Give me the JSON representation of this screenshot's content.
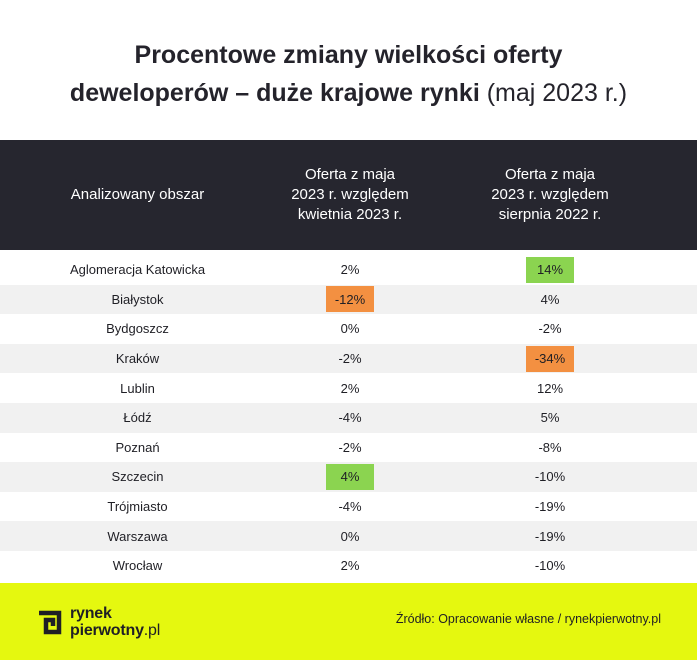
{
  "title": {
    "line1": "Procentowe zmiany wielkości oferty",
    "line2_bold": "deweloperów – duże krajowe rynki",
    "line2_light": " (maj 2023 r.)"
  },
  "colors": {
    "increase_highlight": "#8bd450",
    "decrease_highlight": "#f39041",
    "header_bg": "#26262f",
    "footer_bg": "#e5f80f"
  },
  "chart_data": {
    "type": "table",
    "columns": [
      "Analizowany obszar",
      "Oferta z maja 2023 r. względem kwietnia 2023 r.",
      "Oferta z maja 2023 r. względem sierpnia 2022 r."
    ],
    "column_lines": [
      [
        "Analizowany obszar"
      ],
      [
        "Oferta z maja",
        "2023 r. względem",
        "kwietnia 2023 r."
      ],
      [
        "Oferta z maja",
        "2023 r. względem",
        "sierpnia 2022 r."
      ]
    ],
    "rows": [
      {
        "area": "Aglomeracja Katowicka",
        "vs_apr_2023": "2%",
        "vs_aug_2022": "14%",
        "highlight_apr": null,
        "highlight_aug": "increase"
      },
      {
        "area": "Białystok",
        "vs_apr_2023": "-12%",
        "vs_aug_2022": "4%",
        "highlight_apr": "decrease",
        "highlight_aug": null
      },
      {
        "area": "Bydgoszcz",
        "vs_apr_2023": "0%",
        "vs_aug_2022": "-2%",
        "highlight_apr": null,
        "highlight_aug": null
      },
      {
        "area": "Kraków",
        "vs_apr_2023": "-2%",
        "vs_aug_2022": "-34%",
        "highlight_apr": null,
        "highlight_aug": "decrease"
      },
      {
        "area": "Lublin",
        "vs_apr_2023": "2%",
        "vs_aug_2022": "12%",
        "highlight_apr": null,
        "highlight_aug": null
      },
      {
        "area": "Łódź",
        "vs_apr_2023": "-4%",
        "vs_aug_2022": "5%",
        "highlight_apr": null,
        "highlight_aug": null
      },
      {
        "area": "Poznań",
        "vs_apr_2023": "-2%",
        "vs_aug_2022": "-8%",
        "highlight_apr": null,
        "highlight_aug": null
      },
      {
        "area": "Szczecin",
        "vs_apr_2023": "4%",
        "vs_aug_2022": "-10%",
        "highlight_apr": "increase",
        "highlight_aug": null
      },
      {
        "area": "Trójmiasto",
        "vs_apr_2023": "-4%",
        "vs_aug_2022": "-19%",
        "highlight_apr": null,
        "highlight_aug": null
      },
      {
        "area": "Warszawa",
        "vs_apr_2023": "0%",
        "vs_aug_2022": "-19%",
        "highlight_apr": null,
        "highlight_aug": null
      },
      {
        "area": "Wrocław",
        "vs_apr_2023": "2%",
        "vs_aug_2022": "-10%",
        "highlight_apr": null,
        "highlight_aug": null
      }
    ]
  },
  "footer": {
    "logo_line1": "rynek",
    "logo_line2": "pierwotny",
    "logo_domain": ".pl",
    "source": "Źródło: Opracowanie własne / rynekpierwotny.pl"
  },
  "icons": {
    "logo": "rynekpierwotny-logo-icon"
  }
}
